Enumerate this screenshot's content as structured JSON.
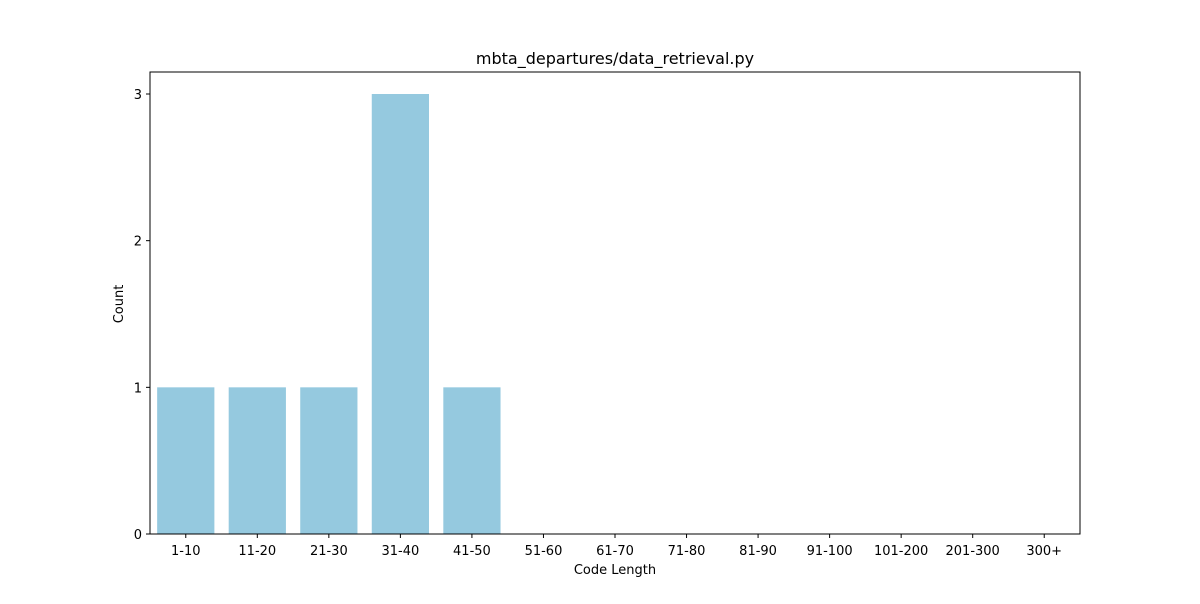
{
  "chart_data": {
    "type": "bar",
    "title": "mbta_departures/data_retrieval.py",
    "xlabel": "Code Length",
    "ylabel": "Count",
    "categories": [
      "1-10",
      "11-20",
      "21-30",
      "31-40",
      "41-50",
      "51-60",
      "61-70",
      "71-80",
      "81-90",
      "91-100",
      "101-200",
      "201-300",
      "300+"
    ],
    "values": [
      1,
      1,
      1,
      3,
      1,
      0,
      0,
      0,
      0,
      0,
      0,
      0,
      0
    ],
    "ylim": [
      0,
      3.15
    ],
    "yticks": [
      0,
      1,
      2,
      3
    ],
    "bar_color": "#95c9df",
    "grid": false,
    "legend": "none"
  }
}
